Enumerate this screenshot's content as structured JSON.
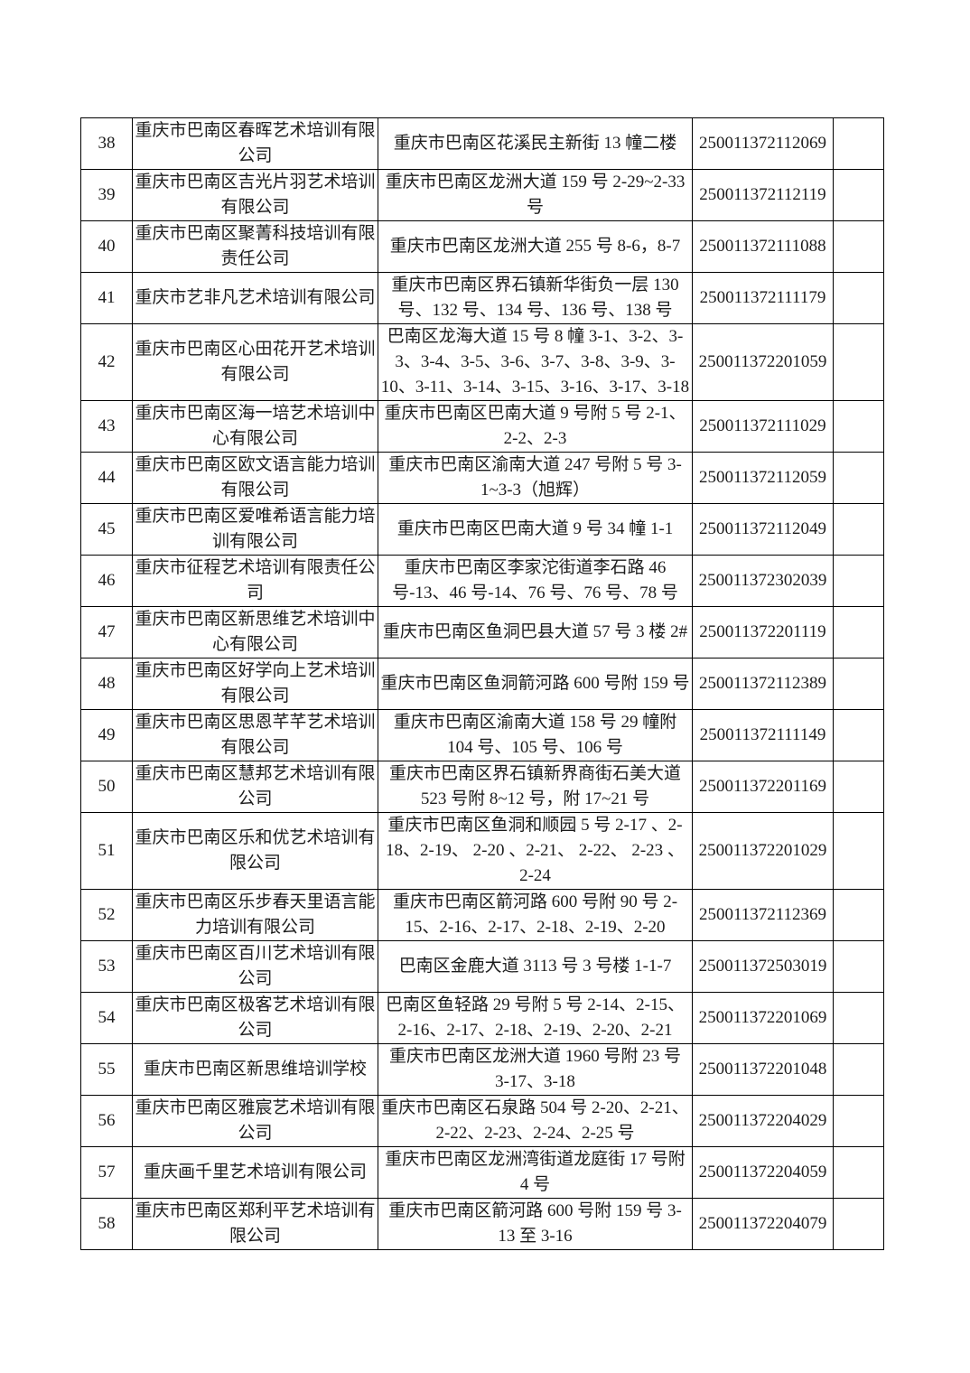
{
  "page": {
    "background_color": "#ffffff",
    "text_color": "#1c1c1c",
    "border_color": "#000000"
  },
  "table": {
    "columns": [
      "index",
      "name",
      "address",
      "license",
      "note"
    ],
    "rows": [
      {
        "index": "38",
        "name": "重庆市巴南区春晖艺术培训有限公司",
        "address": "重庆市巴南区花溪民主新街 13 幢二楼",
        "license": "250011372112069",
        "note": ""
      },
      {
        "index": "39",
        "name": "重庆市巴南区吉光片羽艺术培训有限公司",
        "address": "重庆市巴南区龙洲大道 159 号 2-29~2-33 号",
        "license": "250011372112119",
        "note": ""
      },
      {
        "index": "40",
        "name": "重庆市巴南区聚菁科技培训有限责任公司",
        "address": "重庆市巴南区龙洲大道 255 号 8-6，8-7",
        "license": "250011372111088",
        "note": ""
      },
      {
        "index": "41",
        "name": "重庆市艺非凡艺术培训有限公司",
        "address": "重庆市巴南区界石镇新华街负一层 130 号、132 号、134 号、136 号、138 号",
        "license": "250011372111179",
        "note": ""
      },
      {
        "index": "42",
        "name": "重庆市巴南区心田花开艺术培训有限公司",
        "address": "巴南区龙海大道 15 号 8 幢 3-1、3-2、3-3、3-4、3-5、3-6、3-7、3-8、3-9、3-10、3-11、3-14、3-15、3-16、3-17、3-18",
        "license": "250011372201059",
        "note": ""
      },
      {
        "index": "43",
        "name": "重庆市巴南区海一培艺术培训中心有限公司",
        "address": "重庆市巴南区巴南大道 9 号附 5 号 2-1、2-2、2-3",
        "license": "250011372111029",
        "note": ""
      },
      {
        "index": "44",
        "name": "重庆市巴南区欧文语言能力培训有限公司",
        "address": "重庆市巴南区渝南大道 247 号附 5 号 3-1~3-3（旭辉）",
        "license": "250011372112059",
        "note": ""
      },
      {
        "index": "45",
        "name": "重庆市巴南区爱唯希语言能力培训有限公司",
        "address": "重庆市巴南区巴南大道 9 号 34 幢 1-1",
        "license": "250011372112049",
        "note": ""
      },
      {
        "index": "46",
        "name": "重庆市征程艺术培训有限责任公司",
        "address": "重庆市巴南区李家沱街道李石路 46 号-13、46 号-14、76 号、76 号、78 号",
        "license": "250011372302039",
        "note": ""
      },
      {
        "index": "47",
        "name": "重庆市巴南区新思维艺术培训中心有限公司",
        "address": "重庆市巴南区鱼洞巴县大道 57 号 3 楼 2#",
        "license": "250011372201119",
        "note": ""
      },
      {
        "index": "48",
        "name": "重庆市巴南区好学向上艺术培训有限公司",
        "address": "重庆市巴南区鱼洞箭河路 600 号附 159 号",
        "license": "250011372112389",
        "note": ""
      },
      {
        "index": "49",
        "name": "重庆市巴南区思恩芊芊艺术培训有限公司",
        "address": "重庆市巴南区渝南大道 158 号 29 幢附 104 号、105 号、106 号",
        "license": "250011372111149",
        "note": ""
      },
      {
        "index": "50",
        "name": "重庆市巴南区慧邦艺术培训有限公司",
        "address": "重庆市巴南区界石镇新界商街石美大道 523 号附 8~12 号，附 17~21 号",
        "license": "250011372201169",
        "note": ""
      },
      {
        "index": "51",
        "name": "重庆市巴南区乐和优艺术培训有限公司",
        "address": "重庆市巴南区鱼洞和顺园 5 号 2-17 、2-18、2-19、 2-20 、2-21、 2-22、 2-23 、2-24",
        "license": "250011372201029",
        "note": ""
      },
      {
        "index": "52",
        "name": "重庆市巴南区乐步春天里语言能力培训有限公司",
        "address": "重庆市巴南区箭河路 600 号附 90 号 2-15、2-16、2-17、2-18、2-19、2-20",
        "license": "250011372112369",
        "note": ""
      },
      {
        "index": "53",
        "name": "重庆市巴南区百川艺术培训有限公司",
        "address": "巴南区金鹿大道 3113 号 3 号楼 1-1-7",
        "license": "250011372503019",
        "note": ""
      },
      {
        "index": "54",
        "name": "重庆市巴南区极客艺术培训有限公司",
        "address": "巴南区鱼轻路 29 号附 5 号 2-14、2-15、2-16、2-17、2-18、2-19、2-20、2-21",
        "license": "250011372201069",
        "note": ""
      },
      {
        "index": "55",
        "name": "重庆市巴南区新思维培训学校",
        "address": "重庆市巴南区龙洲大道 1960 号附 23 号 3-17、3-18",
        "license": "250011372201048",
        "note": ""
      },
      {
        "index": "56",
        "name": "重庆市巴南区雅宸艺术培训有限公司",
        "address": "重庆市巴南区石泉路 504 号 2-20、2-21、2-22、2-23、2-24、2-25 号",
        "license": "250011372204029",
        "note": ""
      },
      {
        "index": "57",
        "name": "重庆画千里艺术培训有限公司",
        "address": "重庆市巴南区龙洲湾街道龙庭街 17 号附 4 号",
        "license": "250011372204059",
        "note": ""
      },
      {
        "index": "58",
        "name": "重庆市巴南区郑利平艺术培训有限公司",
        "address": "重庆市巴南区箭河路 600 号附 159 号 3-13 至 3-16",
        "license": "250011372204079",
        "note": ""
      }
    ]
  }
}
